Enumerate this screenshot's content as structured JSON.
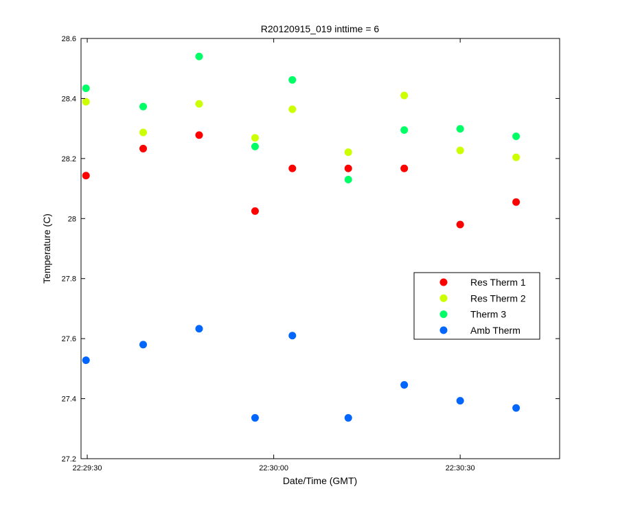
{
  "chart_data": {
    "type": "scatter",
    "title": "R20120915_019 inttime = 6",
    "xlabel": "Date/Time (GMT)",
    "ylabel": "Temperature (C)",
    "xlim": [
      "22:29:29",
      "22:30:46"
    ],
    "ylim": [
      27.2,
      28.6
    ],
    "x_ticks": [
      "22:29:30",
      "22:30:00",
      "22:30:30"
    ],
    "y_ticks": [
      "27.2",
      "27.4",
      "27.6",
      "27.8",
      "28",
      "28.2",
      "28.4",
      "28.6"
    ],
    "grid": false,
    "legend_position": "right",
    "x": [
      "22:29:29.8",
      "22:29:39",
      "22:29:48",
      "22:29:57",
      "22:30:03",
      "22:30:12",
      "22:30:21",
      "22:30:30",
      "22:30:39"
    ],
    "series": [
      {
        "name": "Res Therm 1",
        "color": "#ff0000",
        "values": [
          28.143,
          28.233,
          28.278,
          28.025,
          28.167,
          28.167,
          28.167,
          27.98,
          28.055
        ]
      },
      {
        "name": "Res Therm 2",
        "color": "#ccff00",
        "values": [
          28.389,
          28.287,
          28.382,
          28.269,
          28.364,
          28.221,
          28.41,
          28.227,
          28.204
        ]
      },
      {
        "name": "Therm 3",
        "color": "#00ff66",
        "values": [
          28.434,
          28.373,
          28.54,
          28.24,
          28.462,
          28.13,
          28.295,
          28.299,
          28.274
        ]
      },
      {
        "name": "Amb Therm",
        "color": "#0066ff",
        "values": [
          27.528,
          27.58,
          27.633,
          27.336,
          27.61,
          27.336,
          27.446,
          27.393,
          27.369
        ]
      }
    ]
  }
}
